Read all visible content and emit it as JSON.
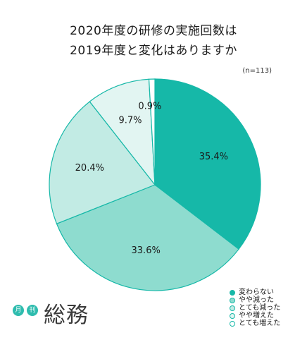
{
  "title_lines": [
    "2020年度の研修の実施回数は",
    "2019年度と変化はありますか"
  ],
  "sample_note": "(n=113)",
  "logo": {
    "badge_left": "月",
    "badge_right": "刊",
    "wordmark": "総務"
  },
  "chart_data": {
    "type": "pie",
    "title": "2020年度の研修の実施回数は 2019年度と変化はありますか",
    "note": "(n=113)",
    "start": "12 o'clock, clockwise",
    "legend_position": "bottom-right",
    "slices": [
      {
        "label": "変わらない",
        "value": 35.4,
        "value_label": "35.4%",
        "color": "#16b8a8"
      },
      {
        "label": "やや減った",
        "value": 33.6,
        "value_label": "33.6%",
        "color": "#8edccf"
      },
      {
        "label": "とても減った",
        "value": 20.4,
        "value_label": "20.4%",
        "color": "#c2ebe4"
      },
      {
        "label": "やや増えた",
        "value": 9.7,
        "value_label": "9.7%",
        "color": "#e2f5f2"
      },
      {
        "label": "とても増えた",
        "value": 0.9,
        "value_label": "0.9%",
        "color": "#ffffff"
      }
    ]
  }
}
